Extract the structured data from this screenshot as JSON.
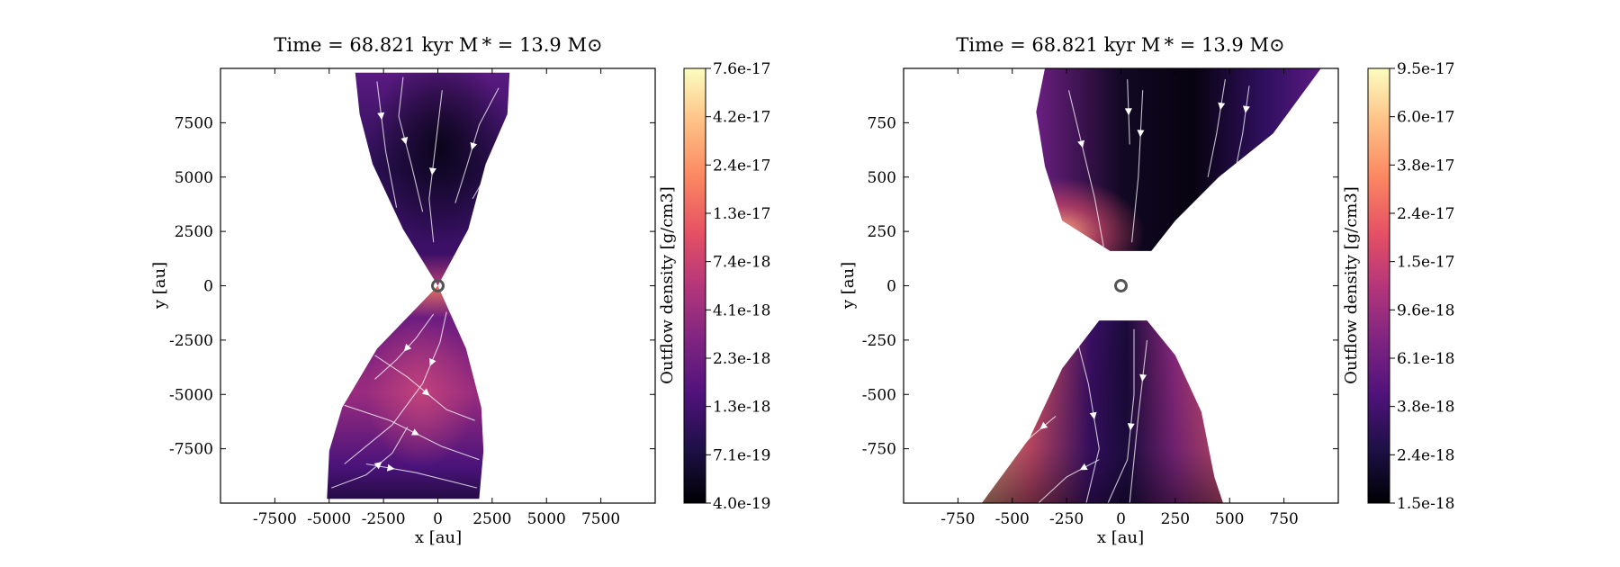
{
  "chart_data": [
    {
      "type": "heatmap",
      "title": "Time = 68.821 kyr    M * = 13.9 M⊙",
      "xlabel": "x [au]",
      "ylabel": "y [au]",
      "xlim": [
        -10000,
        10000
      ],
      "ylim": [
        -10000,
        10000
      ],
      "xticks": [
        -7500,
        -5000,
        -2500,
        0,
        2500,
        5000,
        7500
      ],
      "yticks": [
        -7500,
        -5000,
        -2500,
        0,
        2500,
        5000,
        7500
      ],
      "colorbar": {
        "label": "Outflow density [g/cm3]",
        "scale": "log",
        "colormap": "magma",
        "ticks": [
          "4.0e-19",
          "7.1e-19",
          "1.3e-18",
          "2.3e-18",
          "4.1e-18",
          "7.4e-18",
          "1.3e-17",
          "2.4e-17",
          "4.2e-17",
          "7.6e-17"
        ]
      },
      "star_position": [
        0,
        0
      ],
      "upper_lobe": [
        [
          -3800,
          9800
        ],
        [
          3300,
          9800
        ],
        [
          3200,
          7900
        ],
        [
          2200,
          5600
        ],
        [
          1400,
          2600
        ],
        [
          0,
          0
        ],
        [
          -1600,
          2600
        ],
        [
          -3000,
          5600
        ],
        [
          -3600,
          7900
        ]
      ],
      "lower_lobe": [
        [
          0,
          0
        ],
        [
          1300,
          -2900
        ],
        [
          2000,
          -5600
        ],
        [
          2100,
          -7600
        ],
        [
          1900,
          -9800
        ],
        [
          -5100,
          -9800
        ],
        [
          -5000,
          -7600
        ],
        [
          -4400,
          -5600
        ],
        [
          -2800,
          -2900
        ]
      ],
      "streamlines": [
        [
          [
            -2800,
            9400
          ],
          [
            -2400,
            6200
          ],
          [
            -1900,
            3600
          ]
        ],
        [
          [
            -1600,
            9600
          ],
          [
            -1800,
            7800
          ],
          [
            -1200,
            5500
          ],
          [
            -700,
            3400
          ]
        ],
        [
          [
            200,
            9000
          ],
          [
            -100,
            6500
          ],
          [
            -400,
            4000
          ],
          [
            -200,
            2000
          ]
        ],
        [
          [
            2800,
            9100
          ],
          [
            1900,
            7400
          ],
          [
            1300,
            5400
          ],
          [
            800,
            3800
          ]
        ],
        [
          [
            3200,
            6700
          ],
          [
            2400,
            5400
          ],
          [
            1600,
            4000
          ]
        ],
        [
          [
            -200,
            -1300
          ],
          [
            -1000,
            -2400
          ],
          [
            -1900,
            -3400
          ],
          [
            -2900,
            -4300
          ]
        ],
        [
          [
            400,
            -1200
          ],
          [
            100,
            -2600
          ],
          [
            -700,
            -4500
          ],
          [
            -2100,
            -6400
          ],
          [
            -4300,
            -8200
          ]
        ],
        [
          [
            -2900,
            -3200
          ],
          [
            -1400,
            -4200
          ],
          [
            400,
            -5700
          ],
          [
            1700,
            -6200
          ]
        ],
        [
          [
            -4300,
            -5500
          ],
          [
            -2200,
            -6200
          ],
          [
            200,
            -7400
          ],
          [
            1900,
            -8000
          ]
        ],
        [
          [
            -4900,
            -9300
          ],
          [
            -3300,
            -8700
          ],
          [
            -2100,
            -7700
          ],
          [
            -1400,
            -6500
          ]
        ],
        [
          [
            -3300,
            -8200
          ],
          [
            -1000,
            -8600
          ],
          [
            1800,
            -9300
          ]
        ]
      ]
    },
    {
      "type": "heatmap",
      "title": "Time = 68.821 kyr    M * = 13.9 M⊙",
      "xlabel": "x [au]",
      "ylabel": "y [au]",
      "xlim": [
        -1000,
        1000
      ],
      "ylim": [
        -1000,
        1000
      ],
      "xticks": [
        -750,
        -500,
        -250,
        0,
        250,
        500,
        750
      ],
      "yticks": [
        -750,
        -500,
        -250,
        0,
        250,
        500,
        750
      ],
      "colorbar": {
        "label": "Outflow density [g/cm3]",
        "scale": "log",
        "colormap": "magma",
        "ticks": [
          "1.5e-18",
          "2.4e-18",
          "3.8e-18",
          "6.1e-18",
          "9.6e-18",
          "1.5e-17",
          "2.4e-17",
          "3.8e-17",
          "6.0e-17",
          "9.5e-17"
        ]
      },
      "star_position": [
        0,
        0
      ],
      "upper_lobe": [
        [
          -350,
          1000
        ],
        [
          920,
          1000
        ],
        [
          700,
          700
        ],
        [
          450,
          500
        ],
        [
          250,
          300
        ],
        [
          140,
          160
        ],
        [
          -50,
          160
        ],
        [
          -270,
          300
        ],
        [
          -350,
          550
        ],
        [
          -390,
          800
        ]
      ],
      "lower_lobe": [
        [
          -100,
          -160
        ],
        [
          120,
          -160
        ],
        [
          250,
          -320
        ],
        [
          370,
          -580
        ],
        [
          430,
          -880
        ],
        [
          470,
          -1000
        ],
        [
          -640,
          -1000
        ],
        [
          -420,
          -700
        ],
        [
          -270,
          -380
        ]
      ],
      "streamlines": [
        [
          [
            -240,
            900
          ],
          [
            -120,
            400
          ],
          [
            -80,
            180
          ]
        ],
        [
          [
            30,
            950
          ],
          [
            40,
            650
          ]
        ],
        [
          [
            100,
            900
          ],
          [
            80,
            500
          ],
          [
            50,
            200
          ]
        ],
        [
          [
            480,
            950
          ],
          [
            440,
            700
          ],
          [
            400,
            500
          ]
        ],
        [
          [
            590,
            920
          ],
          [
            560,
            700
          ],
          [
            520,
            500
          ]
        ],
        [
          [
            -220,
            -180
          ],
          [
            -150,
            -450
          ],
          [
            -100,
            -750
          ],
          [
            -160,
            -1000
          ]
        ],
        [
          [
            60,
            -200
          ],
          [
            60,
            -500
          ],
          [
            30,
            -800
          ],
          [
            -60,
            -1000
          ]
        ],
        [
          [
            120,
            -250
          ],
          [
            80,
            -600
          ],
          [
            40,
            -1000
          ]
        ],
        [
          [
            -300,
            -600
          ],
          [
            -420,
            -700
          ],
          [
            -560,
            -850
          ]
        ],
        [
          [
            -100,
            -800
          ],
          [
            -250,
            -880
          ],
          [
            -380,
            -1000
          ]
        ]
      ]
    }
  ]
}
